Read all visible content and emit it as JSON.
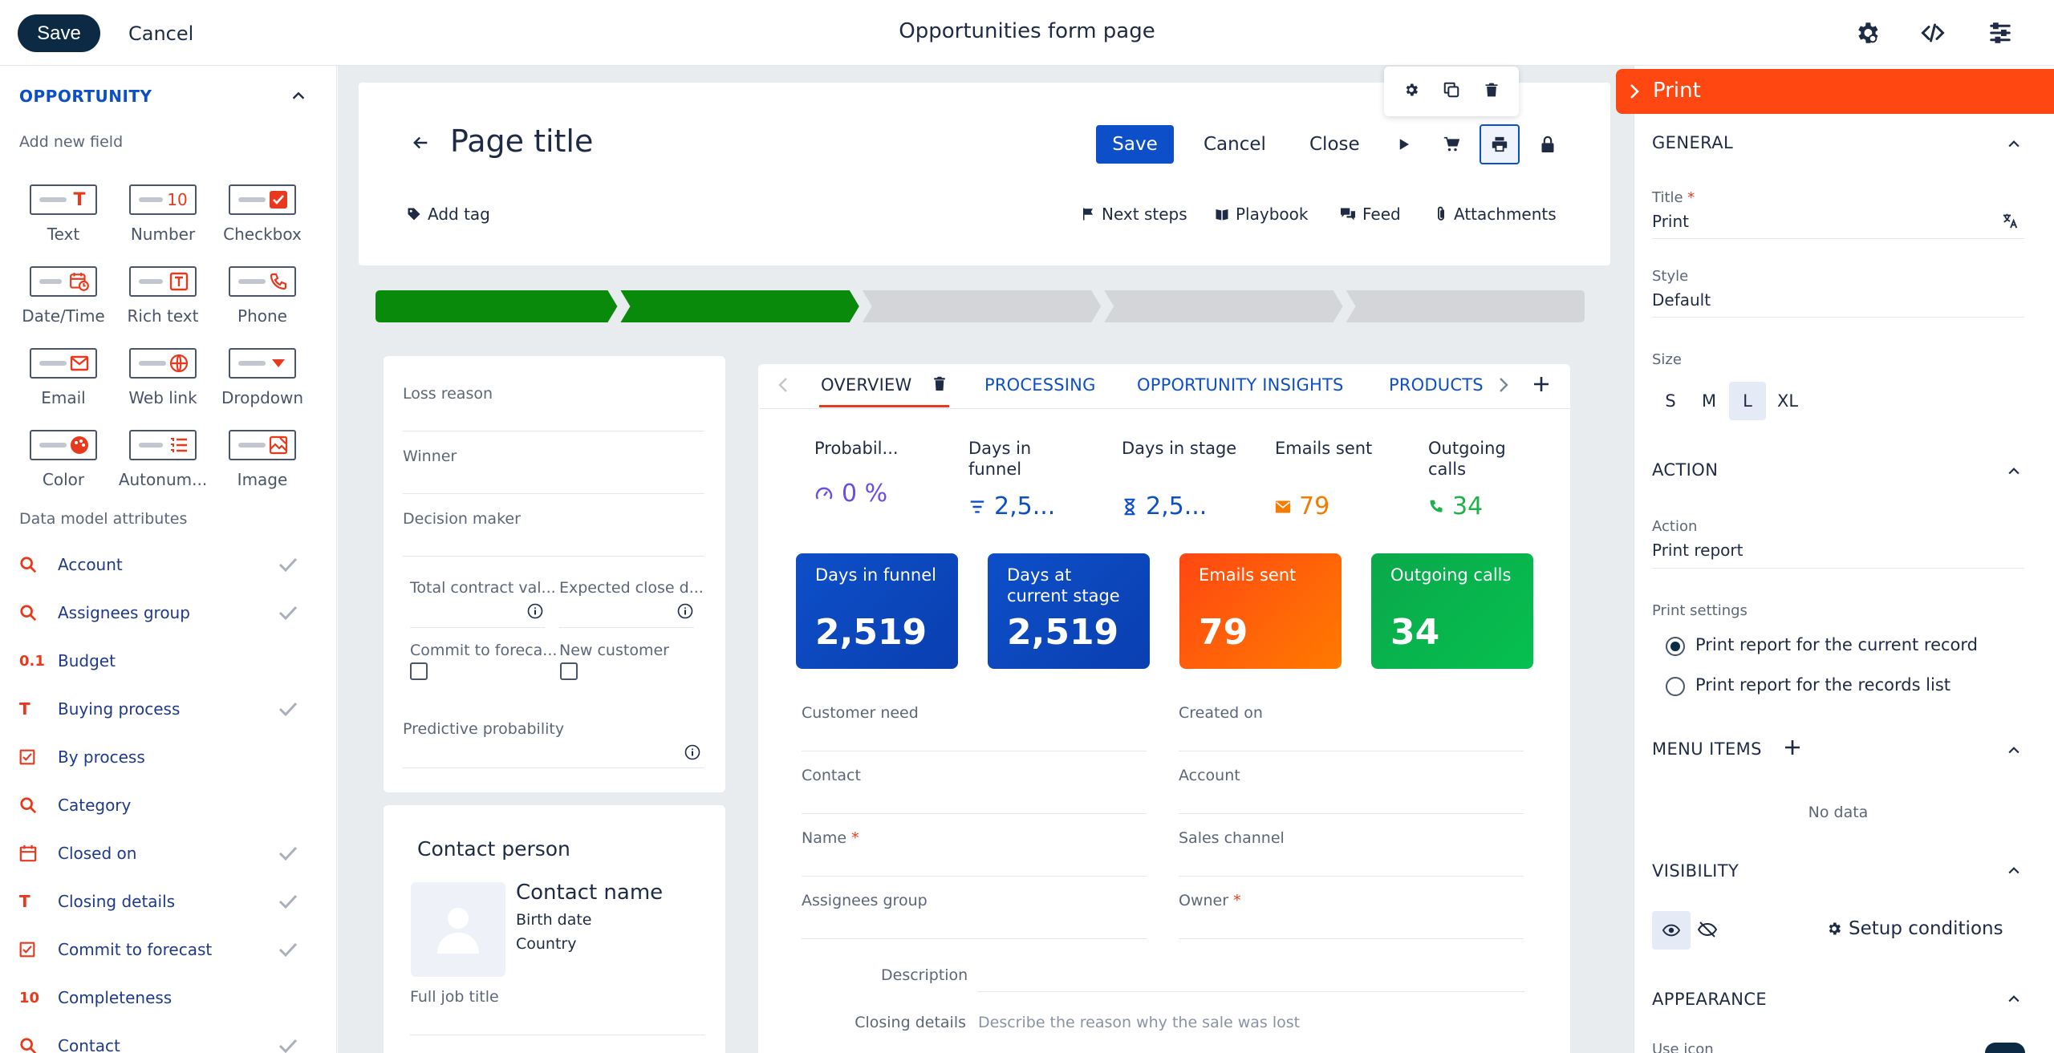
{
  "topbar": {
    "save_label": "Save",
    "cancel_label": "Cancel",
    "title": "Opportunities form page",
    "icons": [
      "gear-icon",
      "code-icon",
      "sliders-icon"
    ]
  },
  "left_panel": {
    "section_title": "OPPORTUNITY",
    "add_new_field": "Add new field",
    "field_types": [
      {
        "label": "Text",
        "icon": "text-field-icon"
      },
      {
        "label": "Number",
        "icon": "number-field-icon"
      },
      {
        "label": "Checkbox",
        "icon": "checkbox-field-icon"
      },
      {
        "label": "Date/Time",
        "icon": "datetime-field-icon"
      },
      {
        "label": "Rich text",
        "icon": "richtext-field-icon"
      },
      {
        "label": "Phone",
        "icon": "phone-field-icon"
      },
      {
        "label": "Email",
        "icon": "email-field-icon"
      },
      {
        "label": "Web link",
        "icon": "weblink-field-icon"
      },
      {
        "label": "Dropdown",
        "icon": "dropdown-field-icon"
      },
      {
        "label": "Color",
        "icon": "color-field-icon"
      },
      {
        "label": "Autonum...",
        "icon": "autonumber-field-icon"
      },
      {
        "label": "Image",
        "icon": "image-field-icon"
      }
    ],
    "data_model_title": "Data model attributes",
    "attributes": [
      {
        "label": "Account",
        "icon": "search-icon",
        "checked": true
      },
      {
        "label": "Assignees group",
        "icon": "search-icon",
        "checked": true
      },
      {
        "label": "Budget",
        "icon": "decimal-icon",
        "checked": false
      },
      {
        "label": "Buying process",
        "icon": "text-icon",
        "checked": true
      },
      {
        "label": "By process",
        "icon": "checkbox-icon",
        "checked": false
      },
      {
        "label": "Category",
        "icon": "search-icon",
        "checked": false
      },
      {
        "label": "Closed on",
        "icon": "calendar-icon",
        "checked": true
      },
      {
        "label": "Closing details",
        "icon": "text-icon",
        "checked": true
      },
      {
        "label": "Commit to forecast",
        "icon": "checkbox-icon",
        "checked": true
      },
      {
        "label": "Completeness",
        "icon": "number-icon",
        "checked": false
      },
      {
        "label": "Contact",
        "icon": "search-icon",
        "checked": true
      }
    ],
    "decimal_glyph": "0.1",
    "number_glyph": "10",
    "text_glyph": "T"
  },
  "header": {
    "page_title": "Page title",
    "save_label": "Save",
    "cancel_label": "Cancel",
    "close_label": "Close",
    "add_tag_label": "Add tag",
    "links": [
      "Next steps",
      "Playbook",
      "Feed",
      "Attachments"
    ]
  },
  "progress": {
    "completed_steps": 2,
    "total_steps": 5
  },
  "left_card": {
    "fields": [
      "Loss reason",
      "Winner",
      "Decision maker"
    ],
    "total_contract": "Total contract val...",
    "expected_close": "Expected close d...",
    "commit_forecast": "Commit to foreca...",
    "new_customer": "New customer",
    "predictive": "Predictive probability"
  },
  "contact_card": {
    "title": "Contact person",
    "name": "Contact name",
    "birth_date": "Birth date",
    "country": "Country",
    "job_title": "Full job title"
  },
  "tabs": [
    "OVERVIEW",
    "PROCESSING",
    "OPPORTUNITY INSIGHTS",
    "PRODUCTS"
  ],
  "kpis": [
    {
      "label": "Probabil...",
      "value": "0 %",
      "color": "#6b4de6",
      "icon": "gauge-icon"
    },
    {
      "label": "Days in funnel",
      "value": "2,5...",
      "color": "#0d4fc9",
      "icon": "filter-icon"
    },
    {
      "label": "Days in stage",
      "value": "2,5...",
      "color": "#0d4fc9",
      "icon": "hourglass-icon"
    },
    {
      "label": "Emails sent",
      "value": "79",
      "color": "#f57c00",
      "icon": "email-icon"
    },
    {
      "label": "Outgoing calls",
      "value": "34",
      "color": "#1fb24a",
      "icon": "phone-icon"
    }
  ],
  "tiles": [
    {
      "label": "Days in funnel",
      "value": "2,519",
      "color": "#0d4fc9"
    },
    {
      "label": "Days at current stage",
      "value": "2,519",
      "color": "#0d4fc9"
    },
    {
      "label": "Emails sent",
      "value": "79",
      "color": "#ff5a0a"
    },
    {
      "label": "Outgoing calls",
      "value": "34",
      "color": "#0aa84a"
    }
  ],
  "overview_fields": {
    "left": [
      "Customer need",
      "Contact",
      "Name",
      "Assignees group"
    ],
    "right": [
      "Created on",
      "Account",
      "Sales channel",
      "Owner"
    ],
    "required_asterisk": "*",
    "description_label": "Description",
    "closing_details_label": "Closing details",
    "closing_details_placeholder": "Describe the reason why the sale was lost"
  },
  "right_panel": {
    "header": "Print",
    "general": "GENERAL",
    "title_label": "Title",
    "title_value": "Print",
    "style_label": "Style",
    "style_value": "Default",
    "size_label": "Size",
    "sizes": [
      "S",
      "M",
      "L",
      "XL"
    ],
    "selected_size": "L",
    "action_section": "ACTION",
    "action_label": "Action",
    "action_value": "Print report",
    "print_settings_label": "Print settings",
    "print_options": [
      {
        "label": "Print report for the current record",
        "selected": true
      },
      {
        "label": "Print report for the records list",
        "selected": false
      }
    ],
    "menu_items": "MENU ITEMS",
    "no_data": "No data",
    "visibility": "VISIBILITY",
    "setup_conditions": "Setup conditions",
    "appearance": "APPEARANCE",
    "use_icon": "Use icon"
  }
}
